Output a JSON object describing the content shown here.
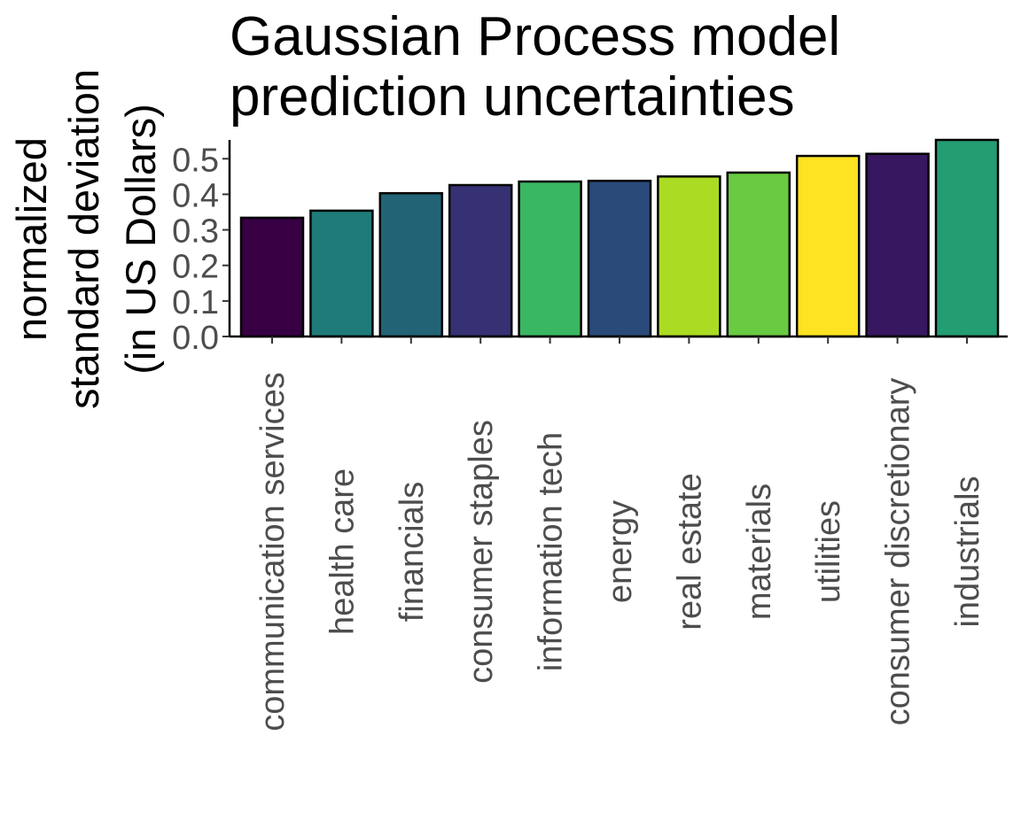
{
  "chart_data": {
    "type": "bar",
    "title_lines": [
      "Gaussian Process model",
      "prediction uncertainties"
    ],
    "ylabel_lines": [
      "normalized",
      "standard deviation",
      "(in US Dollars)"
    ],
    "xlabel": "",
    "categories": [
      "communication services",
      "health care",
      "financials",
      "consumer staples",
      "information tech",
      "energy",
      "real estate",
      "materials",
      "utilities",
      "consumer discretionary",
      "industrials"
    ],
    "values": [
      0.334,
      0.354,
      0.403,
      0.426,
      0.436,
      0.438,
      0.45,
      0.461,
      0.508,
      0.514,
      0.553
    ],
    "colors": [
      "#360043",
      "#1f7b79",
      "#226476",
      "#353173",
      "#3ab762",
      "#2a4b7a",
      "#abdc23",
      "#69cb41",
      "#fde321",
      "#37175f",
      "#239d72"
    ],
    "yticks": [
      0.0,
      0.1,
      0.2,
      0.3,
      0.4,
      0.5
    ],
    "ytick_labels": [
      "0.0",
      "0.1",
      "0.2",
      "0.3",
      "0.4",
      "0.5"
    ],
    "ylim": [
      0,
      0.553
    ],
    "grid": false,
    "legend": "none"
  }
}
